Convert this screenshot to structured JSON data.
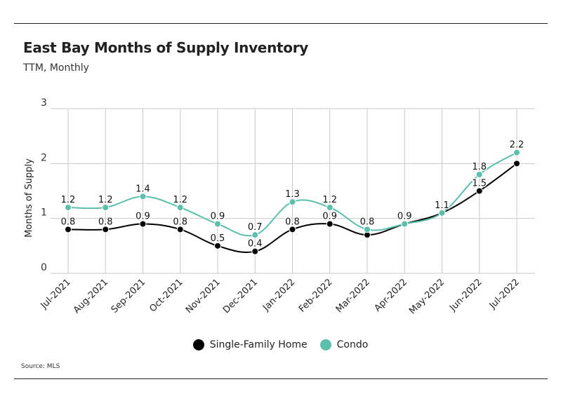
{
  "header": {
    "title": "East Bay Months of Supply Inventory",
    "subtitle": "TTM, Monthly"
  },
  "footer": {
    "source": "Source:  MLS"
  },
  "colors": {
    "single_family": "#000000",
    "condo": "#5bbfac",
    "grid": "#c8c8c8"
  },
  "chart_data": {
    "type": "line",
    "ylabel": "Months of Supply",
    "xlabel": "",
    "ylim": [
      0,
      3
    ],
    "yticks": [
      0,
      1,
      2,
      3
    ],
    "grid": true,
    "legend_position": "bottom",
    "categories": [
      "Jul-2021",
      "Aug-2021",
      "Sep-2021",
      "Oct-2021",
      "Nov-2021",
      "Dec-2021",
      "Jan-2022",
      "Feb-2022",
      "Mar-2022",
      "Apr-2022",
      "May-2022",
      "Jun-2022",
      "Jul-2022"
    ],
    "series": [
      {
        "name": "Single-Family Home",
        "values": [
          0.8,
          0.8,
          0.9,
          0.8,
          0.5,
          0.4,
          0.8,
          0.9,
          0.7,
          0.9,
          1.1,
          1.5,
          2.0
        ],
        "labels": [
          "0.8",
          "0.8",
          "0.9",
          "0.8",
          "0.5",
          "0.4",
          "0.8",
          "0.9",
          "",
          "",
          "",
          "1.5",
          ""
        ]
      },
      {
        "name": "Condo",
        "values": [
          1.2,
          1.2,
          1.4,
          1.2,
          0.9,
          0.7,
          1.3,
          1.2,
          0.8,
          0.9,
          1.1,
          1.8,
          2.2
        ],
        "labels": [
          "1.2",
          "1.2",
          "1.4",
          "1.2",
          "0.9",
          "0.7",
          "1.3",
          "1.2",
          "0.8",
          "0.9",
          "1.1",
          "1.8",
          "2.2"
        ]
      }
    ]
  }
}
